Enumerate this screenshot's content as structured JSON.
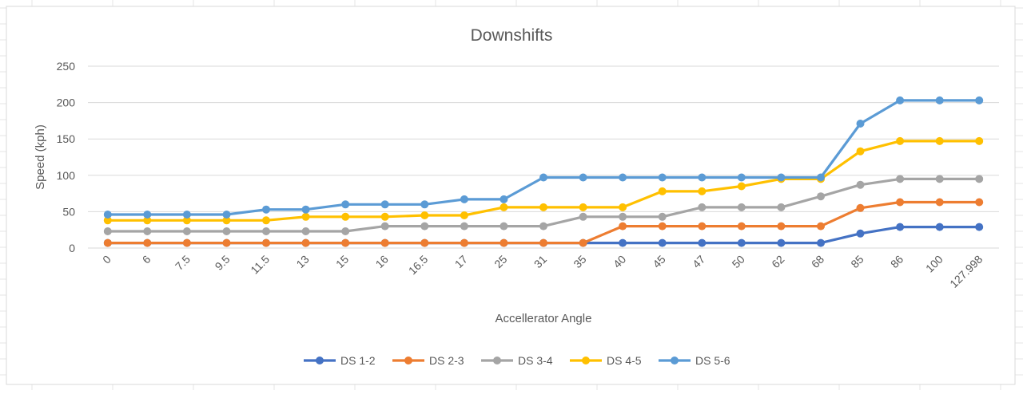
{
  "chart_data": {
    "type": "line",
    "title": "Downshifts",
    "xlabel": "Accellerator Angle",
    "ylabel": "Speed (kph)",
    "ylim": [
      0,
      250
    ],
    "yticks": [
      "0",
      "50",
      "100",
      "150",
      "200",
      "250"
    ],
    "grid": "horizontal",
    "legend": "bottom",
    "categories": [
      "0",
      "6",
      "7.5",
      "9.5",
      "11.5",
      "13",
      "15",
      "16",
      "16.5",
      "17",
      "25",
      "31",
      "35",
      "40",
      "45",
      "47",
      "50",
      "62",
      "68",
      "85",
      "86",
      "100",
      "127.998"
    ],
    "series": [
      {
        "name": "DS 1-2",
        "color": "#4472C4",
        "values": [
          7,
          7,
          7,
          7,
          7,
          7,
          7,
          7,
          7,
          7,
          7,
          7,
          7,
          7,
          7,
          7,
          7,
          7,
          7,
          20,
          29,
          29,
          29
        ]
      },
      {
        "name": "DS 2-3",
        "color": "#ED7D31",
        "values": [
          7,
          7,
          7,
          7,
          7,
          7,
          7,
          7,
          7,
          7,
          7,
          7,
          7,
          30,
          30,
          30,
          30,
          30,
          30,
          55,
          63,
          63,
          63
        ]
      },
      {
        "name": "DS 3-4",
        "color": "#A5A5A5",
        "values": [
          23,
          23,
          23,
          23,
          23,
          23,
          23,
          30,
          30,
          30,
          30,
          30,
          43,
          43,
          43,
          56,
          56,
          56,
          71,
          87,
          95,
          95,
          95
        ]
      },
      {
        "name": "DS 4-5",
        "color": "#FFC000",
        "values": [
          38,
          38,
          38,
          38,
          38,
          43,
          43,
          43,
          45,
          45,
          56,
          56,
          56,
          56,
          78,
          78,
          85,
          95,
          95,
          133,
          147,
          147,
          147
        ]
      },
      {
        "name": "DS 5-6",
        "color": "#5B9BD5",
        "values": [
          46,
          46,
          46,
          46,
          53,
          53,
          60,
          60,
          60,
          67,
          67,
          97,
          97,
          97,
          97,
          97,
          97,
          97,
          97,
          171,
          203,
          203,
          203
        ]
      }
    ]
  }
}
